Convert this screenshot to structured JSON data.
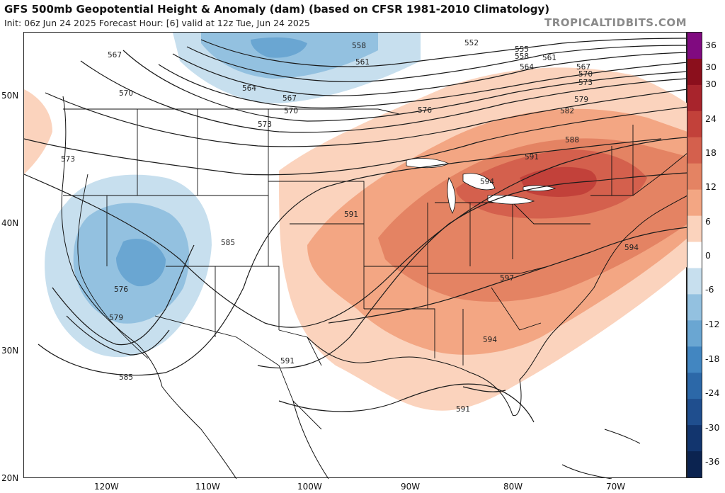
{
  "header": {
    "title": "GFS 500mb Geopotential Height & Anomaly (dam) (based on CFSR 1981-2010 Climatology)",
    "subtitle": "Init: 06z Jun 24 2025    Forecast Hour: [6]    valid at 12z Tue, Jun 24 2025",
    "brand": "TROPICALTIDBITS.COM"
  },
  "axes": {
    "lat_labels": [
      "50N",
      "40N",
      "30N",
      "20N"
    ],
    "lon_labels": [
      "120W",
      "110W",
      "100W",
      "90W",
      "80W",
      "70W"
    ]
  },
  "colorbar": {
    "labels": [
      "36",
      "30",
      "24",
      "18",
      "12",
      "6",
      "0",
      "-6",
      "-12",
      "-18",
      "-24",
      "-30",
      "-36"
    ],
    "colors": [
      "#800a80",
      "#8b0f1c",
      "#a8242c",
      "#c2413a",
      "#d4604d",
      "#e48363",
      "#f3a683",
      "#fbd3bd",
      "#ffffff",
      "#c7dfee",
      "#93c1e0",
      "#6aa6d2",
      "#4286c1",
      "#2c68a8",
      "#1f4e8e",
      "#12356e",
      "#0b2350"
    ]
  },
  "contours": {
    "labels": [
      "552",
      "555",
      "558",
      "558",
      "561",
      "561",
      "564",
      "564",
      "567",
      "567",
      "567",
      "570",
      "570",
      "570",
      "573",
      "573",
      "573",
      "576",
      "576",
      "579",
      "579",
      "582",
      "585",
      "585",
      "588",
      "591",
      "591",
      "591",
      "591",
      "594",
      "594",
      "594",
      "597"
    ],
    "units": "dam"
  }
}
